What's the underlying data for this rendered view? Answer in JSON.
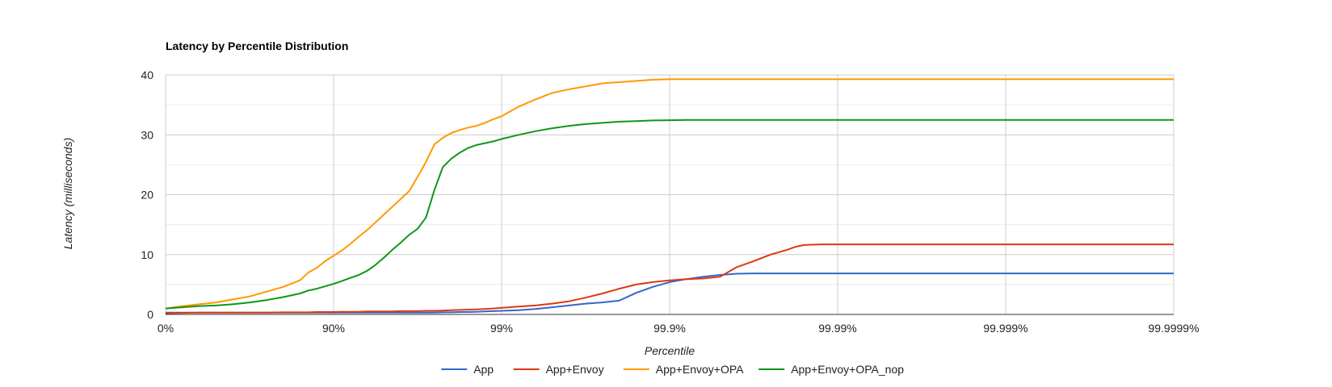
{
  "chart_data": {
    "type": "line",
    "title": "Latency by Percentile Distribution",
    "xlabel": "Percentile",
    "ylabel": "Latency (milliseconds)",
    "x_scale": "log-inverse-percentile",
    "x_ticks": [
      "0%",
      "90%",
      "99%",
      "99.9%",
      "99.99%",
      "99.999%",
      "99.9999%"
    ],
    "xlim": [
      0,
      6
    ],
    "ylim": [
      0,
      40
    ],
    "y_ticks": [
      "0",
      "10",
      "20",
      "30",
      "40"
    ],
    "grid": true,
    "legend_position": "bottom",
    "x": [
      0,
      0.1,
      0.2,
      0.3,
      0.4,
      0.5,
      0.6,
      0.7,
      0.8,
      0.85,
      0.9,
      0.95,
      1.0,
      1.05,
      1.1,
      1.15,
      1.2,
      1.25,
      1.3,
      1.35,
      1.4,
      1.45,
      1.5,
      1.55,
      1.6,
      1.65,
      1.7,
      1.75,
      1.8,
      1.85,
      1.9,
      1.95,
      2.0,
      2.1,
      2.2,
      2.3,
      2.4,
      2.5,
      2.6,
      2.7,
      2.8,
      2.9,
      3.0,
      3.1,
      3.2,
      3.3,
      3.4,
      3.5,
      3.6,
      3.7,
      3.75,
      3.8,
      3.9,
      4.0,
      4.5,
      5.0,
      5.5,
      6.0
    ],
    "series": [
      {
        "name": "App",
        "color": "#3366cc",
        "values": [
          0.3,
          0.3,
          0.3,
          0.3,
          0.3,
          0.3,
          0.3,
          0.3,
          0.3,
          0.3,
          0.3,
          0.3,
          0.3,
          0.3,
          0.3,
          0.3,
          0.3,
          0.3,
          0.3,
          0.3,
          0.3,
          0.3,
          0.3,
          0.3,
          0.3,
          0.35,
          0.35,
          0.4,
          0.4,
          0.45,
          0.5,
          0.55,
          0.6,
          0.7,
          0.9,
          1.2,
          1.5,
          1.8,
          2.0,
          2.3,
          3.6,
          4.6,
          5.4,
          5.9,
          6.3,
          6.6,
          6.8,
          6.85,
          6.85,
          6.85,
          6.85,
          6.85,
          6.85,
          6.85,
          6.85,
          6.85,
          6.85,
          6.85
        ]
      },
      {
        "name": "App+Envoy",
        "color": "#dc3912",
        "values": [
          0.2,
          0.25,
          0.3,
          0.3,
          0.3,
          0.3,
          0.3,
          0.35,
          0.35,
          0.35,
          0.4,
          0.4,
          0.4,
          0.45,
          0.45,
          0.45,
          0.5,
          0.5,
          0.5,
          0.5,
          0.55,
          0.55,
          0.55,
          0.6,
          0.6,
          0.65,
          0.7,
          0.75,
          0.8,
          0.85,
          0.9,
          1.0,
          1.1,
          1.3,
          1.5,
          1.8,
          2.2,
          2.8,
          3.5,
          4.3,
          5.0,
          5.4,
          5.7,
          5.9,
          6.0,
          6.3,
          7.9,
          8.9,
          10.0,
          10.8,
          11.3,
          11.6,
          11.7,
          11.7,
          11.7,
          11.7,
          11.7,
          11.7
        ]
      },
      {
        "name": "App+Envoy+OPA",
        "color": "#ff9900",
        "values": [
          1.0,
          1.4,
          1.7,
          2.0,
          2.5,
          3.0,
          3.8,
          4.6,
          5.7,
          7.0,
          7.8,
          8.9,
          9.8,
          10.7,
          11.8,
          13.0,
          14.1,
          15.4,
          16.7,
          18.0,
          19.3,
          20.6,
          23.0,
          25.5,
          28.4,
          29.5,
          30.3,
          30.8,
          31.2,
          31.5,
          32.0,
          32.6,
          33.1,
          34.7,
          35.9,
          37.0,
          37.6,
          38.1,
          38.6,
          38.8,
          39.0,
          39.2,
          39.3,
          39.3,
          39.3,
          39.3,
          39.3,
          39.3,
          39.3,
          39.3,
          39.3,
          39.3,
          39.3,
          39.3,
          39.3,
          39.3,
          39.3,
          39.3
        ]
      },
      {
        "name": "App+Envoy+OPA_nop",
        "color": "#109618",
        "values": [
          1.0,
          1.2,
          1.4,
          1.5,
          1.7,
          2.0,
          2.4,
          2.9,
          3.5,
          4.0,
          4.3,
          4.7,
          5.1,
          5.6,
          6.1,
          6.6,
          7.3,
          8.3,
          9.5,
          10.8,
          12.0,
          13.3,
          14.3,
          16.2,
          20.8,
          24.6,
          26.0,
          27.0,
          27.8,
          28.3,
          28.6,
          28.9,
          29.3,
          30.0,
          30.6,
          31.1,
          31.5,
          31.8,
          32.0,
          32.2,
          32.3,
          32.4,
          32.45,
          32.5,
          32.5,
          32.5,
          32.5,
          32.5,
          32.5,
          32.5,
          32.5,
          32.5,
          32.5,
          32.5,
          32.5,
          32.5,
          32.5,
          32.5
        ]
      }
    ]
  }
}
